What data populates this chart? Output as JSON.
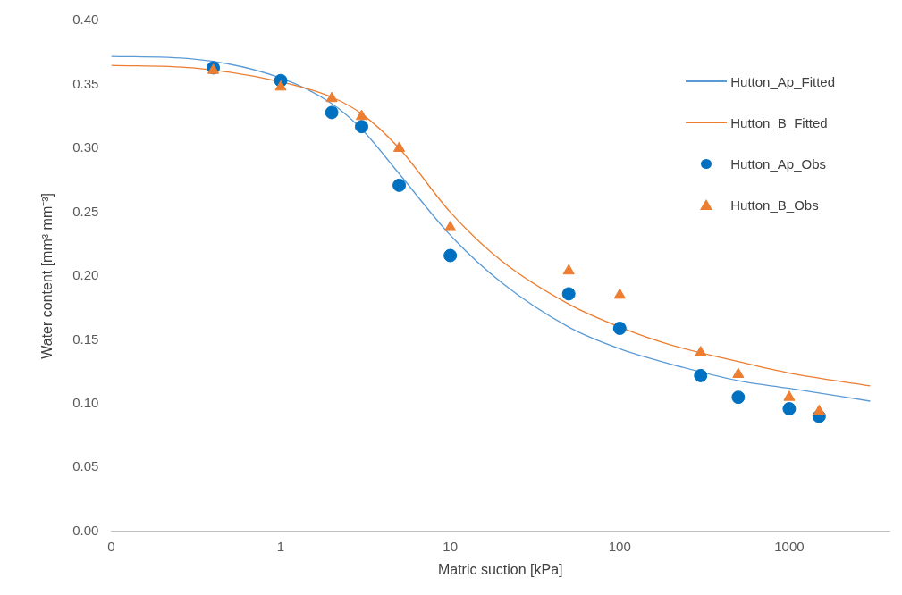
{
  "chart_data": {
    "type": "scatter",
    "xlabel": "Matric suction [kPa]",
    "ylabel": "Water content [mm³ mm⁻³]",
    "log": "x",
    "xlim": [
      0.1,
      3900
    ],
    "xticks": [
      {
        "value": 0.1,
        "label": "0"
      },
      1,
      10,
      100,
      1000
    ],
    "ylim": [
      0,
      0.4
    ],
    "yticks": [
      {
        "value": 0,
        "label": "0.00"
      },
      {
        "value": 0.05,
        "label": "0.05"
      },
      {
        "value": 0.1,
        "label": "0.10"
      },
      {
        "value": 0.15,
        "label": "0.15"
      },
      {
        "value": 0.2,
        "label": "0.20"
      },
      {
        "value": 0.25,
        "label": "0.25"
      },
      {
        "value": 0.3,
        "label": "0.30"
      },
      {
        "value": 0.35,
        "label": "0.35"
      },
      {
        "value": 0.4,
        "label": "0.40"
      }
    ],
    "grid": false,
    "legend": "top right",
    "series": [
      {
        "name": "Hutton_Ap_Fitted",
        "type": "line",
        "marker": "none",
        "color": "#5b9bd5",
        "x": [
          0.1,
          0.3,
          1,
          2,
          3,
          5,
          10,
          20,
          50,
          100,
          200,
          500,
          1000,
          3000
        ],
        "values": [
          0.372,
          0.37,
          0.355,
          0.335,
          0.315,
          0.28,
          0.232,
          0.195,
          0.16,
          0.143,
          0.131,
          0.118,
          0.112,
          0.102
        ]
      },
      {
        "name": "Hutton_B_Fitted",
        "type": "line",
        "marker": "none",
        "color": "#ed7d31",
        "x": [
          0.1,
          0.3,
          1,
          2,
          3,
          5,
          10,
          20,
          50,
          100,
          200,
          500,
          1000,
          3000
        ],
        "values": [
          0.365,
          0.363,
          0.352,
          0.34,
          0.327,
          0.3,
          0.25,
          0.212,
          0.178,
          0.16,
          0.146,
          0.133,
          0.124,
          0.114
        ]
      },
      {
        "name": "Hutton_Ap_Obs",
        "marker": "circle",
        "color": "#0070c0",
        "x": [
          0.4,
          1,
          2,
          3,
          5,
          10,
          50,
          100,
          300,
          500,
          1000,
          1500
        ],
        "values": [
          0.363,
          0.353,
          0.328,
          0.317,
          0.271,
          0.216,
          0.186,
          0.159,
          0.122,
          0.105,
          0.096,
          0.09
        ]
      },
      {
        "name": "Hutton_B_Obs",
        "marker": "triangle",
        "color": "#ed7d31",
        "x": [
          0.4,
          1,
          2,
          3,
          5,
          10,
          50,
          100,
          300,
          500,
          1000,
          1500
        ],
        "values": [
          0.361,
          0.348,
          0.339,
          0.325,
          0.3,
          0.238,
          0.204,
          0.185,
          0.14,
          0.123,
          0.105,
          0.094
        ]
      }
    ]
  }
}
